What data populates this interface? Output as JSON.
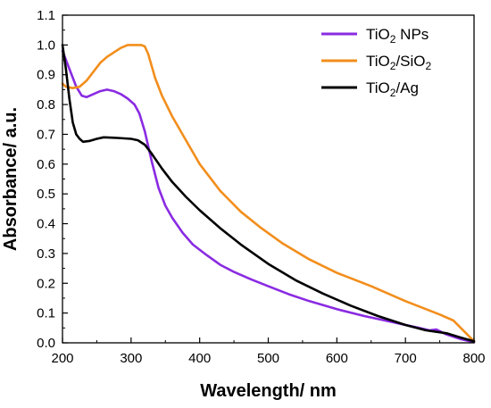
{
  "chart_data": {
    "type": "line",
    "title": "",
    "xlabel": "Wavelength/ nm",
    "ylabel": "Absorbance/ a.u.",
    "xlim": [
      200,
      800
    ],
    "ylim": [
      0.0,
      1.1
    ],
    "xticks": [
      200,
      300,
      400,
      500,
      600,
      700,
      800
    ],
    "yticks": [
      0.0,
      0.1,
      0.2,
      0.3,
      0.4,
      0.5,
      0.6,
      0.7,
      0.8,
      0.9,
      1.0,
      1.1
    ],
    "ytick_labels": [
      "0.0",
      "0.1",
      "0.2",
      "0.3",
      "0.4",
      "0.5",
      "0.6",
      "0.7",
      "0.8",
      "0.9",
      "1.0",
      "1.1"
    ],
    "xtick_labels": [
      "200",
      "300",
      "400",
      "500",
      "600",
      "700",
      "800"
    ],
    "grid": false,
    "legend_placement": "top-right",
    "series": [
      {
        "name": "TiO2 NPs",
        "legend": {
          "base": "TiO",
          "sub": "2",
          "rest": " NPs"
        },
        "color": "#8a2be2",
        "x": [
          200,
          210,
          220,
          228,
          235,
          245,
          255,
          265,
          275,
          285,
          295,
          305,
          312,
          320,
          330,
          340,
          350,
          360,
          375,
          390,
          410,
          430,
          450,
          475,
          500,
          530,
          560,
          600,
          640,
          680,
          720,
          735,
          745,
          760,
          780,
          800
        ],
        "y": [
          0.98,
          0.92,
          0.86,
          0.83,
          0.825,
          0.835,
          0.845,
          0.85,
          0.845,
          0.835,
          0.82,
          0.8,
          0.77,
          0.71,
          0.61,
          0.52,
          0.46,
          0.42,
          0.37,
          0.33,
          0.295,
          0.262,
          0.238,
          0.213,
          0.19,
          0.163,
          0.14,
          0.113,
          0.09,
          0.07,
          0.05,
          0.042,
          0.045,
          0.028,
          0.013,
          0.002
        ]
      },
      {
        "name": "TiO2/SiO2",
        "legend": {
          "base": "TiO",
          "sub": "2",
          "rest": "/SiO",
          "sub2": "2"
        },
        "color": "#f28e1c",
        "x": [
          200,
          205,
          215,
          225,
          235,
          245,
          255,
          265,
          275,
          285,
          295,
          305,
          315,
          320,
          325,
          335,
          345,
          360,
          380,
          400,
          430,
          460,
          490,
          520,
          560,
          600,
          650,
          700,
          750,
          770,
          785,
          800
        ],
        "y": [
          0.87,
          0.86,
          0.855,
          0.86,
          0.88,
          0.91,
          0.94,
          0.96,
          0.975,
          0.99,
          1.0,
          1.0,
          1.0,
          0.995,
          0.97,
          0.89,
          0.83,
          0.76,
          0.68,
          0.6,
          0.51,
          0.44,
          0.385,
          0.335,
          0.28,
          0.235,
          0.19,
          0.14,
          0.095,
          0.075,
          0.04,
          0.005
        ]
      },
      {
        "name": "TiO2/Ag",
        "legend": {
          "base": "TiO",
          "sub": "2",
          "rest": "/Ag"
        },
        "color": "#000000",
        "x": [
          200,
          205,
          210,
          215,
          220,
          225,
          230,
          240,
          250,
          260,
          280,
          300,
          310,
          320,
          330,
          345,
          360,
          380,
          400,
          430,
          460,
          500,
          540,
          580,
          620,
          660,
          700,
          730,
          760,
          780,
          800
        ],
        "y": [
          1.0,
          0.92,
          0.82,
          0.74,
          0.7,
          0.685,
          0.675,
          0.678,
          0.685,
          0.69,
          0.688,
          0.685,
          0.68,
          0.665,
          0.635,
          0.585,
          0.54,
          0.49,
          0.445,
          0.385,
          0.33,
          0.265,
          0.21,
          0.165,
          0.125,
          0.09,
          0.06,
          0.042,
          0.032,
          0.018,
          0.005
        ]
      }
    ]
  }
}
